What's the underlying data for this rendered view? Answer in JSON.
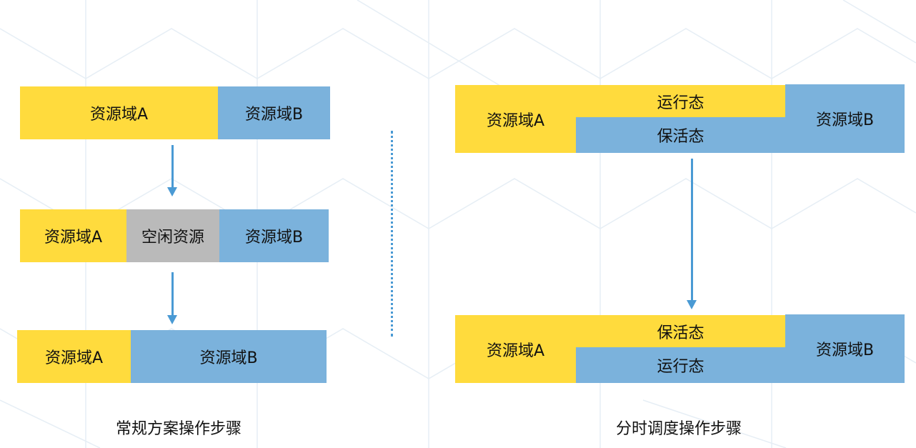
{
  "colors": {
    "domain_a": "#FFDB3D",
    "domain_b": "#7BB2DC",
    "idle": "#BABABA",
    "arrow": "#4A9AD4"
  },
  "left": {
    "caption": "常规方案操作步骤",
    "step1": {
      "a": "资源域A",
      "b": "资源域B"
    },
    "step2": {
      "a": "资源域A",
      "idle": "空闲资源",
      "b": "资源域B"
    },
    "step3": {
      "a": "资源域A",
      "b": "资源域B"
    }
  },
  "right": {
    "caption": "分时调度操作步骤",
    "step1": {
      "a": "资源域A",
      "top": "运行态",
      "bottom": "保活态",
      "b": "资源域B"
    },
    "step2": {
      "a": "资源域A",
      "top": "保活态",
      "bottom": "运行态",
      "b": "资源域B"
    }
  }
}
